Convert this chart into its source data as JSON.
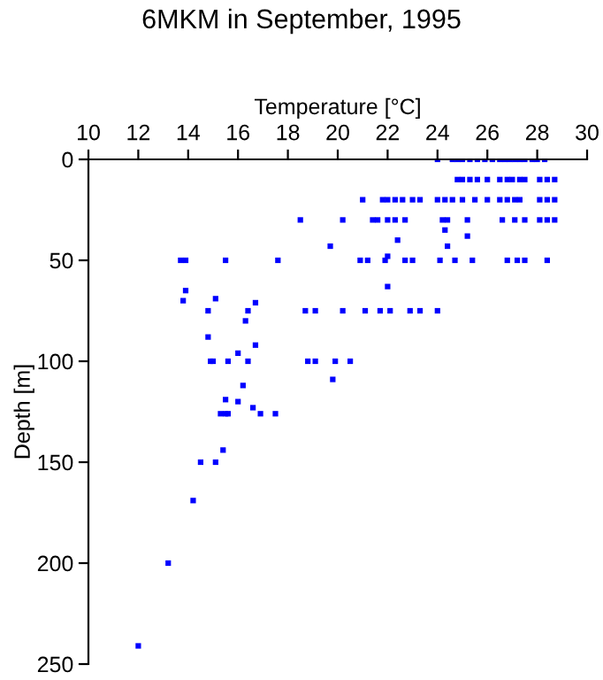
{
  "chart_data": {
    "type": "scatter",
    "title": "6MKM in September, 1995",
    "xlabel": "Temperature [°C]",
    "ylabel": "Depth [m]",
    "xlim": [
      10,
      30
    ],
    "xticks": [
      10,
      12,
      14,
      16,
      18,
      20,
      22,
      24,
      26,
      28,
      30
    ],
    "ylim": [
      250,
      0
    ],
    "yticks": [
      0,
      50,
      100,
      150,
      200,
      250
    ],
    "grid": false,
    "marker": "square",
    "series": [
      {
        "color": "#0000ff",
        "x": [
          24.0,
          24.6,
          24.8,
          25.0,
          25.3,
          25.6,
          25.9,
          26.2,
          26.5,
          26.7,
          26.9,
          27.1,
          27.3,
          27.5,
          27.8,
          28.0,
          28.3,
          24.8,
          25.0,
          25.3,
          25.6,
          26.0,
          26.5,
          26.8,
          27.0,
          27.3,
          27.5,
          28.1,
          28.4,
          28.7,
          21.0,
          21.8,
          22.0,
          22.3,
          22.6,
          23.0,
          23.3,
          24.0,
          24.3,
          24.6,
          25.0,
          25.5,
          26.0,
          26.5,
          26.8,
          27.1,
          27.3,
          28.1,
          28.4,
          28.7,
          18.5,
          20.2,
          21.4,
          21.6,
          22.0,
          22.3,
          22.7,
          24.2,
          24.4,
          25.2,
          26.6,
          27.1,
          27.5,
          28.1,
          28.4,
          28.7,
          24.3,
          25.2,
          22.4,
          19.7,
          24.4,
          22.0,
          13.7,
          13.9,
          15.5,
          17.6,
          20.9,
          21.2,
          21.9,
          22.7,
          23.0,
          24.1,
          24.7,
          25.4,
          26.8,
          27.2,
          27.5,
          28.4,
          22.0,
          13.9,
          13.8,
          15.1,
          16.7,
          14.8,
          16.4,
          18.7,
          19.1,
          20.2,
          21.1,
          21.7,
          22.1,
          22.9,
          23.3,
          24.0,
          16.3,
          14.8,
          16.7,
          16.0,
          14.9,
          15.0,
          15.6,
          16.4,
          18.8,
          19.1,
          19.9,
          20.5,
          19.8,
          16.2,
          15.5,
          16.0,
          16.6,
          15.3,
          15.5,
          15.6,
          16.9,
          17.5,
          15.4,
          14.5,
          15.1,
          14.2,
          13.2,
          12.0
        ],
        "values": [
          0,
          0,
          0,
          0,
          0,
          0,
          0,
          0,
          0,
          0,
          0,
          0,
          0,
          0,
          0,
          0,
          0,
          10,
          10,
          10,
          10,
          10,
          10,
          10,
          10,
          10,
          10,
          10,
          10,
          10,
          20,
          20,
          20,
          20,
          20,
          20,
          20,
          20,
          20,
          20,
          20,
          20,
          20,
          20,
          20,
          20,
          20,
          20,
          20,
          20,
          30,
          30,
          30,
          30,
          30,
          30,
          30,
          30,
          30,
          30,
          30,
          30,
          30,
          30,
          30,
          30,
          35,
          38,
          40,
          43,
          43,
          48,
          50,
          50,
          50,
          50,
          50,
          50,
          50,
          50,
          50,
          50,
          50,
          50,
          50,
          50,
          50,
          50,
          63,
          65,
          70,
          69,
          71,
          75,
          75,
          75,
          75,
          75,
          75,
          75,
          75,
          75,
          75,
          75,
          80,
          88,
          92,
          96,
          100,
          100,
          100,
          100,
          100,
          100,
          100,
          100,
          109,
          112,
          119,
          120,
          123,
          126,
          126,
          126,
          126,
          126,
          144,
          150,
          150,
          169,
          200,
          241
        ]
      }
    ]
  }
}
